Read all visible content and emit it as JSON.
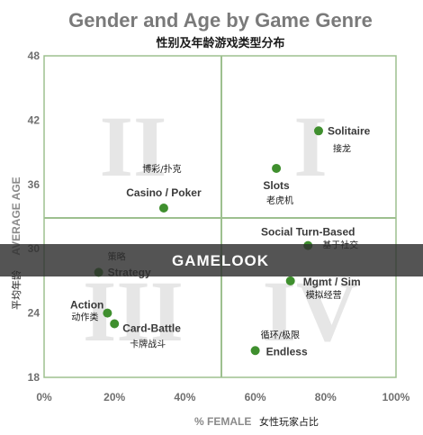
{
  "chart_data": {
    "type": "scatter",
    "title": "Gender and Age by Game Genre",
    "subtitle": "性别及年龄游戏类型分布",
    "xlabel": "% FEMALE",
    "xlabel_cn": "女性玩家占比",
    "ylabel": "AVERAGE AGE",
    "ylabel_cn": "平均年龄",
    "xlim": [
      0,
      100
    ],
    "ylim": [
      18,
      48
    ],
    "x_ticks": [
      "0%",
      "20%",
      "40%",
      "60%",
      "80%",
      "100%"
    ],
    "y_ticks": [
      "18",
      "24",
      "30",
      "36",
      "42",
      "48"
    ],
    "quadrant_labels": [
      "I",
      "II",
      "III",
      "IV"
    ],
    "grid": false,
    "colors": {
      "point": "#3f8f2e",
      "frame": "#9dc08f",
      "title": "#7a7a7a",
      "watermark_band": "#2e2e2e"
    },
    "points": [
      {
        "label": "Solitaire",
        "label_cn": "接龙",
        "x": 78,
        "y": 41
      },
      {
        "label": "Slots",
        "label_cn": "老虎机",
        "x": 66,
        "y": 37.5
      },
      {
        "label": "Casino / Poker",
        "label_cn": "博彩/扑克",
        "x": 34,
        "y": 33.8
      },
      {
        "label": "Social Turn-Based",
        "label_cn": "基于社交",
        "x": 75,
        "y": 30.3
      },
      {
        "label": "Mgmt / Sim",
        "label_cn": "模拟经营",
        "x": 70,
        "y": 27
      },
      {
        "label": "Strategy",
        "label_cn": "策略",
        "x": 15.5,
        "y": 27.8
      },
      {
        "label": "Action",
        "label_cn": "动作类",
        "x": 18,
        "y": 24
      },
      {
        "label": "Card-Battle",
        "label_cn": "卡牌战斗",
        "x": 20,
        "y": 23
      },
      {
        "label": "Endless",
        "label_cn": "循环/极限",
        "x": 60,
        "y": 20.5
      }
    ]
  },
  "watermark": {
    "text": "GAMELOOK"
  }
}
